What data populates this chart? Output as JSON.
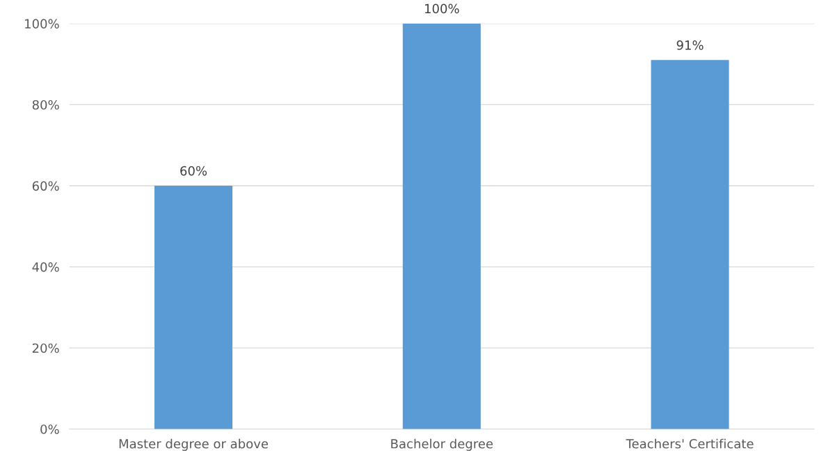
{
  "chart_data": {
    "type": "bar",
    "categories": [
      "Master degree or above",
      "Bachelor degree",
      "Teachers' Certificate"
    ],
    "values": [
      60,
      100,
      91
    ],
    "value_labels": [
      "60%",
      "100%",
      "91%"
    ],
    "color": "#5b9bd5",
    "ylim": [
      0,
      100
    ],
    "yticks": [
      {
        "value": 0,
        "label": "0%"
      },
      {
        "value": 20,
        "label": "20%"
      },
      {
        "value": 40,
        "label": "40%"
      },
      {
        "value": 60,
        "label": "60%"
      },
      {
        "value": 80,
        "label": "80%"
      },
      {
        "value": 100,
        "label": "100%"
      }
    ],
    "grid": "y",
    "legend": false
  }
}
